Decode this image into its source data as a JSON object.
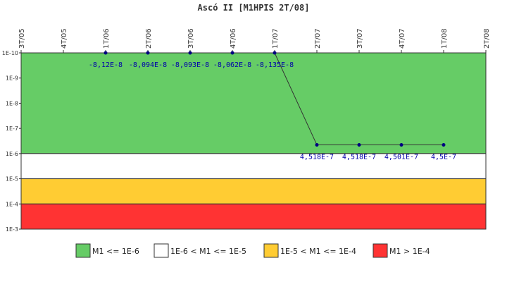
{
  "chart_data": {
    "type": "line",
    "title": "Ascó II [M1HPIS 2T/08]",
    "xlabel": "",
    "ylabel": "",
    "y_scale": "log",
    "y_axis_inverted": true,
    "ylim": [
      1e-10,
      0.001
    ],
    "y_tick_labels": [
      "1E-10",
      "1E-9",
      "1E-8",
      "1E-7",
      "1E-6",
      "1E-5",
      "1E-4",
      "1E-3"
    ],
    "categories": [
      "3T/05",
      "4T/05",
      "1T/06",
      "2T/06",
      "3T/06",
      "4T/06",
      "1T/07",
      "2T/07",
      "3T/07",
      "4T/07",
      "1T/08",
      "2T/08"
    ],
    "series": [
      {
        "color": "#000080",
        "points": [
          {
            "x": "1T/06",
            "y": -8.12e-08,
            "label": "-8,12E-8"
          },
          {
            "x": "2T/06",
            "y": -8.094e-08,
            "label": "-8,094E-8"
          },
          {
            "x": "3T/06",
            "y": -8.093e-08,
            "label": "-8,093E-8"
          },
          {
            "x": "4T/06",
            "y": -8.062e-08,
            "label": "-8,062E-8"
          },
          {
            "x": "1T/07",
            "y": -8.135e-08,
            "label": "-8,135E-8"
          },
          {
            "x": "2T/07",
            "y": 4.518e-07,
            "label": "4,518E-7"
          },
          {
            "x": "3T/07",
            "y": 4.518e-07,
            "label": "4,518E-7"
          },
          {
            "x": "4T/07",
            "y": 4.501e-07,
            "label": "4,501E-7"
          },
          {
            "x": "1T/08",
            "y": 4.5e-07,
            "label": "4,5E-7"
          }
        ]
      }
    ],
    "bands": [
      {
        "from": 1e-10,
        "to": 1e-06,
        "color": "#66cc66",
        "label": "M1 <= 1E-6"
      },
      {
        "from": 1e-06,
        "to": 1e-05,
        "color": "#ffffff",
        "label": "1E-6 < M1 <= 1E-5"
      },
      {
        "from": 1e-05,
        "to": 0.0001,
        "color": "#ffcc33",
        "label": "1E-5 < M1 <= 1E-4"
      },
      {
        "from": 0.0001,
        "to": 0.001,
        "color": "#ff3333",
        "label": "M1 > 1E-4"
      }
    ],
    "grid": false,
    "legend_position": "bottom"
  }
}
